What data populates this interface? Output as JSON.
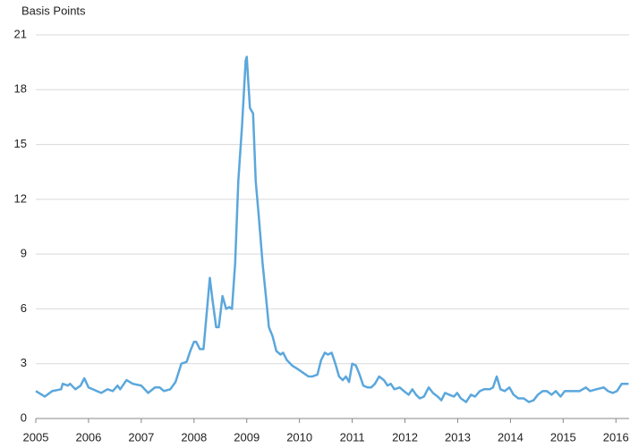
{
  "chart_data": {
    "type": "line",
    "y_axis_label": "Basis Points",
    "xlim": [
      2005,
      2016.25
    ],
    "xticks": [
      2005,
      2006,
      2007,
      2008,
      2009,
      2010,
      2011,
      2012,
      2013,
      2014,
      2015,
      2016
    ],
    "ylim": [
      0,
      21
    ],
    "yticks": [
      0,
      3,
      6,
      9,
      12,
      15,
      18,
      21
    ],
    "grid": true,
    "series": [
      {
        "color": "#5ba7dc",
        "x": [
          2005.0,
          2005.17,
          2005.31,
          2005.48,
          2005.51,
          2005.61,
          2005.65,
          2005.75,
          2005.85,
          2005.92,
          2006.0,
          2006.16,
          2006.24,
          2006.36,
          2006.46,
          2006.55,
          2006.6,
          2006.72,
          2006.84,
          2007.0,
          2007.13,
          2007.26,
          2007.35,
          2007.43,
          2007.55,
          2007.65,
          2007.76,
          2007.86,
          2007.93,
          2008.0,
          2008.04,
          2008.11,
          2008.18,
          2008.3,
          2008.35,
          2008.42,
          2008.47,
          2008.54,
          2008.61,
          2008.67,
          2008.72,
          2008.78,
          2008.84,
          2008.91,
          2008.98,
          2009.0,
          2009.06,
          2009.12,
          2009.17,
          2009.23,
          2009.3,
          2009.37,
          2009.42,
          2009.49,
          2009.56,
          2009.64,
          2009.69,
          2009.76,
          2009.86,
          2009.97,
          2010.07,
          2010.17,
          2010.24,
          2010.34,
          2010.41,
          2010.48,
          2010.54,
          2010.61,
          2010.68,
          2010.75,
          2010.82,
          2010.88,
          2010.94,
          2011.0,
          2011.07,
          2011.14,
          2011.21,
          2011.29,
          2011.36,
          2011.43,
          2011.51,
          2011.6,
          2011.67,
          2011.73,
          2011.8,
          2011.9,
          2011.98,
          2012.07,
          2012.14,
          2012.21,
          2012.28,
          2012.36,
          2012.45,
          2012.53,
          2012.62,
          2012.69,
          2012.76,
          2012.84,
          2012.93,
          2012.99,
          2013.06,
          2013.16,
          2013.25,
          2013.33,
          2013.42,
          2013.5,
          2013.61,
          2013.67,
          2013.74,
          2013.81,
          2013.89,
          2013.98,
          2014.06,
          2014.15,
          2014.25,
          2014.35,
          2014.44,
          2014.52,
          2014.61,
          2014.69,
          2014.78,
          2014.86,
          2014.95,
          2015.03,
          2015.17,
          2015.31,
          2015.43,
          2015.51,
          2015.63,
          2015.77,
          2015.85,
          2015.94,
          2016.02,
          2016.11,
          2016.19,
          2016.24
        ],
        "values": [
          1.5,
          1.2,
          1.5,
          1.6,
          1.9,
          1.8,
          1.9,
          1.6,
          1.8,
          2.2,
          1.7,
          1.5,
          1.4,
          1.6,
          1.5,
          1.8,
          1.6,
          2.1,
          1.9,
          1.8,
          1.4,
          1.7,
          1.7,
          1.5,
          1.6,
          2.0,
          3.0,
          3.1,
          3.7,
          4.2,
          4.2,
          3.8,
          3.8,
          7.7,
          6.5,
          5.0,
          5.0,
          6.7,
          6.0,
          6.1,
          6.0,
          8.5,
          13.0,
          16.0,
          19.6,
          19.8,
          17.0,
          16.7,
          13.0,
          11.0,
          8.5,
          6.5,
          5.0,
          4.5,
          3.7,
          3.5,
          3.6,
          3.2,
          2.9,
          2.7,
          2.5,
          2.3,
          2.3,
          2.4,
          3.2,
          3.6,
          3.5,
          3.6,
          3.0,
          2.3,
          2.1,
          2.3,
          2.0,
          3.0,
          2.9,
          2.4,
          1.8,
          1.7,
          1.7,
          1.9,
          2.3,
          2.1,
          1.8,
          1.9,
          1.6,
          1.7,
          1.5,
          1.3,
          1.6,
          1.3,
          1.1,
          1.2,
          1.7,
          1.4,
          1.2,
          1.0,
          1.4,
          1.3,
          1.2,
          1.4,
          1.1,
          0.9,
          1.3,
          1.2,
          1.5,
          1.6,
          1.6,
          1.7,
          2.3,
          1.6,
          1.5,
          1.7,
          1.3,
          1.1,
          1.1,
          0.9,
          1.0,
          1.3,
          1.5,
          1.5,
          1.3,
          1.5,
          1.2,
          1.5,
          1.5,
          1.5,
          1.7,
          1.5,
          1.6,
          1.7,
          1.5,
          1.4,
          1.5,
          1.9,
          1.9,
          1.9
        ]
      }
    ]
  }
}
